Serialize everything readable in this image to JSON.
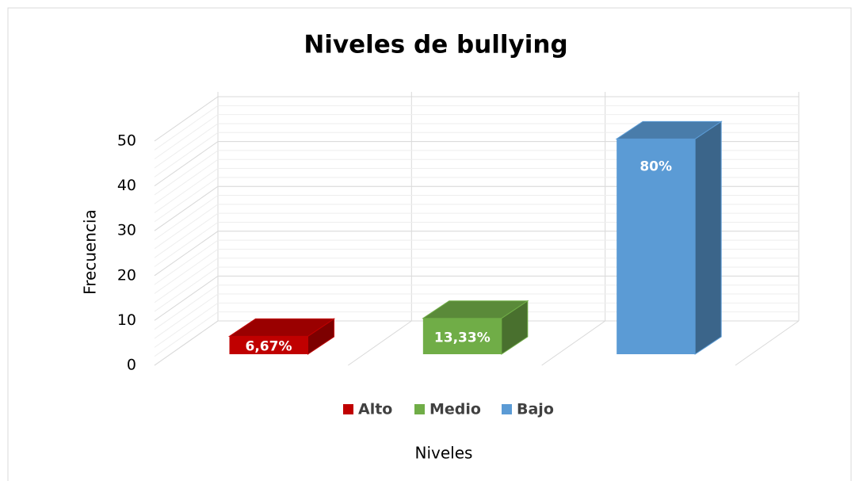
{
  "chart_data": {
    "type": "bar3d",
    "title": "Niveles de bullying",
    "x_label": "Niveles",
    "y_label": "Frecuencia",
    "categories": [
      null
    ],
    "series": [
      {
        "name": "Alto",
        "color": "#c00000",
        "values": [
          4
        ],
        "value_labels": [
          "6,67%"
        ]
      },
      {
        "name": "Medio",
        "color": "#70ad47",
        "values": [
          8
        ],
        "value_labels": [
          "13,33%"
        ]
      },
      {
        "name": "Bajo",
        "color": "#5b9bd5",
        "values": [
          48
        ],
        "value_labels": [
          "80%"
        ]
      }
    ],
    "ylim": [
      0,
      50
    ],
    "yticks": [
      0,
      10,
      20,
      30,
      40,
      50
    ],
    "grid": true,
    "legend": "bottom"
  }
}
